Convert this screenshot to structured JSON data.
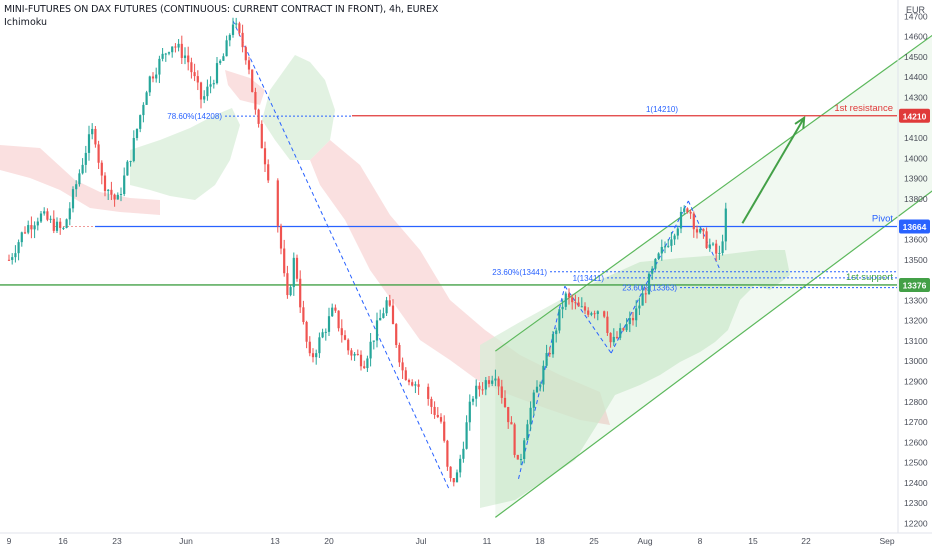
{
  "header": {
    "title": "MINI-FUTURES ON DAX FUTURES (CONTINUOUS: CURRENT CONTRACT IN FRONT), 4h, EUREX",
    "indicator": "Ichimoku",
    "currency": "EUR"
  },
  "colors": {
    "up": "#26a69a",
    "down": "#ef5350",
    "resistance": "#e03a3a",
    "pivot": "#2962ff",
    "support": "#43a047",
    "channel": "#5cb85c",
    "fib": "#2962ff",
    "cloud_bull": "#d8eed8",
    "cloud_bear": "#f8d6d6"
  },
  "chart_data": {
    "type": "candlestick",
    "symbol": "MINI-FUTURES ON DAX FUTURES (CONTINUOUS: CURRENT CONTRACT IN FRONT)",
    "timeframe": "4h",
    "exchange": "EUREX",
    "ylim": [
      12150,
      14750
    ],
    "y_ticks": [
      12200,
      12300,
      12400,
      12500,
      12600,
      12700,
      12800,
      12900,
      13000,
      13100,
      13200,
      13300,
      13400,
      13500,
      13600,
      13700,
      13800,
      13900,
      14000,
      14100,
      14200,
      14300,
      14400,
      14500,
      14600,
      14700
    ],
    "x_ticks": [
      "9",
      "16",
      "23",
      "Jun",
      "13",
      "20",
      "Jul",
      "11",
      "18",
      "25",
      "Aug",
      "8",
      "15",
      "22",
      "Sep"
    ],
    "levels": [
      {
        "name": "1st resistance",
        "value": 14210,
        "badge": "14210",
        "color": "#e03a3a"
      },
      {
        "name": "Pivot",
        "value": 13664,
        "badge": "13664",
        "color": "#2962ff"
      },
      {
        "name": "1st support",
        "value": 13376,
        "badge": "13376",
        "color": "#43a047"
      }
    ],
    "annotations": [
      {
        "text": "78.60%(14208)",
        "value": 14208
      },
      {
        "text": "1(14210)",
        "value": 14210
      },
      {
        "text": "23.60%(13441)",
        "value": 13441
      },
      {
        "text": "1(13411)",
        "value": 13411
      },
      {
        "text": "23.60%(13363)",
        "value": 13363
      }
    ],
    "path_points": [
      [
        "May 9",
        13500
      ],
      [
        "May 11",
        13650
      ],
      [
        "May 13",
        13720
      ],
      [
        "May 16",
        13640
      ],
      [
        "May 19",
        14050
      ],
      [
        "May 20",
        14150
      ],
      [
        "May 21",
        13900
      ],
      [
        "May 23",
        13780
      ],
      [
        "May 25",
        14050
      ],
      [
        "May 27",
        14380
      ],
      [
        "May 30",
        14570
      ],
      [
        "Jun 1",
        14500
      ],
      [
        "Jun 3",
        14280
      ],
      [
        "Jun 6",
        14520
      ],
      [
        "Jun 7",
        14680
      ],
      [
        "Jun 9",
        14480
      ],
      [
        "Jun 10",
        14200
      ],
      [
        "Jun 12",
        13850
      ],
      [
        "Jun 13",
        13640
      ],
      [
        "Jun 14",
        13280
      ],
      [
        "Jun 15",
        13520
      ],
      [
        "Jun 16",
        13200
      ],
      [
        "Jun 17",
        13000
      ],
      [
        "Jun 20",
        13250
      ],
      [
        "Jun 22",
        13050
      ],
      [
        "Jun 24",
        13000
      ],
      [
        "Jun 27",
        13300
      ],
      [
        "Jun 29",
        12950
      ],
      [
        "Jul 1",
        12880
      ],
      [
        "Jul 4",
        12700
      ],
      [
        "Jul 5",
        12400
      ],
      [
        "Jul 6",
        12430
      ],
      [
        "Jul 8",
        12830
      ],
      [
        "Jul 11",
        12950
      ],
      [
        "Jul 13",
        12680
      ],
      [
        "Jul 14",
        12460
      ],
      [
        "Jul 15",
        12700
      ],
      [
        "Jul 18",
        13050
      ],
      [
        "Jul 20",
        13320
      ],
      [
        "Jul 22",
        13250
      ],
      [
        "Jul 25",
        13260
      ],
      [
        "Jul 26",
        13080
      ],
      [
        "Jul 29",
        13220
      ],
      [
        "Aug 1",
        13500
      ],
      [
        "Aug 3",
        13640
      ],
      [
        "Aug 5",
        13770
      ],
      [
        "Aug 6",
        13650
      ],
      [
        "Aug 8",
        13560
      ],
      [
        "Aug 9",
        13510
      ],
      [
        "Aug 10",
        13760
      ]
    ],
    "channel": {
      "lower": [
        [
          "Jul 11",
          12230
        ],
        [
          "Sep 13",
          14050
        ]
      ],
      "upper": [
        [
          "Jul 11",
          13050
        ],
        [
          "Sep 13",
          14810
        ]
      ]
    },
    "projection_arrow": {
      "from": [
        "Aug 12",
        13680
      ],
      "to": [
        "Aug 20",
        14200
      ]
    },
    "grid": false
  }
}
